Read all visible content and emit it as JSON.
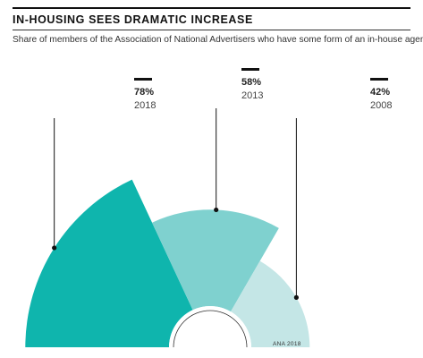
{
  "header": {
    "title": "IN-HOUSING SEES DRAMATIC INCREASE",
    "subtitle": "Share of members of the Association of National Advertisers who have some form of an in-house agency"
  },
  "chart_data": {
    "type": "pie",
    "title": "IN-HOUSING SEES DRAMATIC INCREASE",
    "subtitle": "Share of members of the Association of National Advertisers who have some form of an in-house agency",
    "categories": [
      "2018",
      "2013",
      "2008"
    ],
    "values": [
      78,
      58,
      42
    ],
    "labels": [
      "78%",
      "58%",
      "42%"
    ],
    "unit": "%",
    "colors": [
      "#0fb5ad",
      "#7fd1cf",
      "#c4e6e6"
    ],
    "source": "ANA 2018"
  }
}
